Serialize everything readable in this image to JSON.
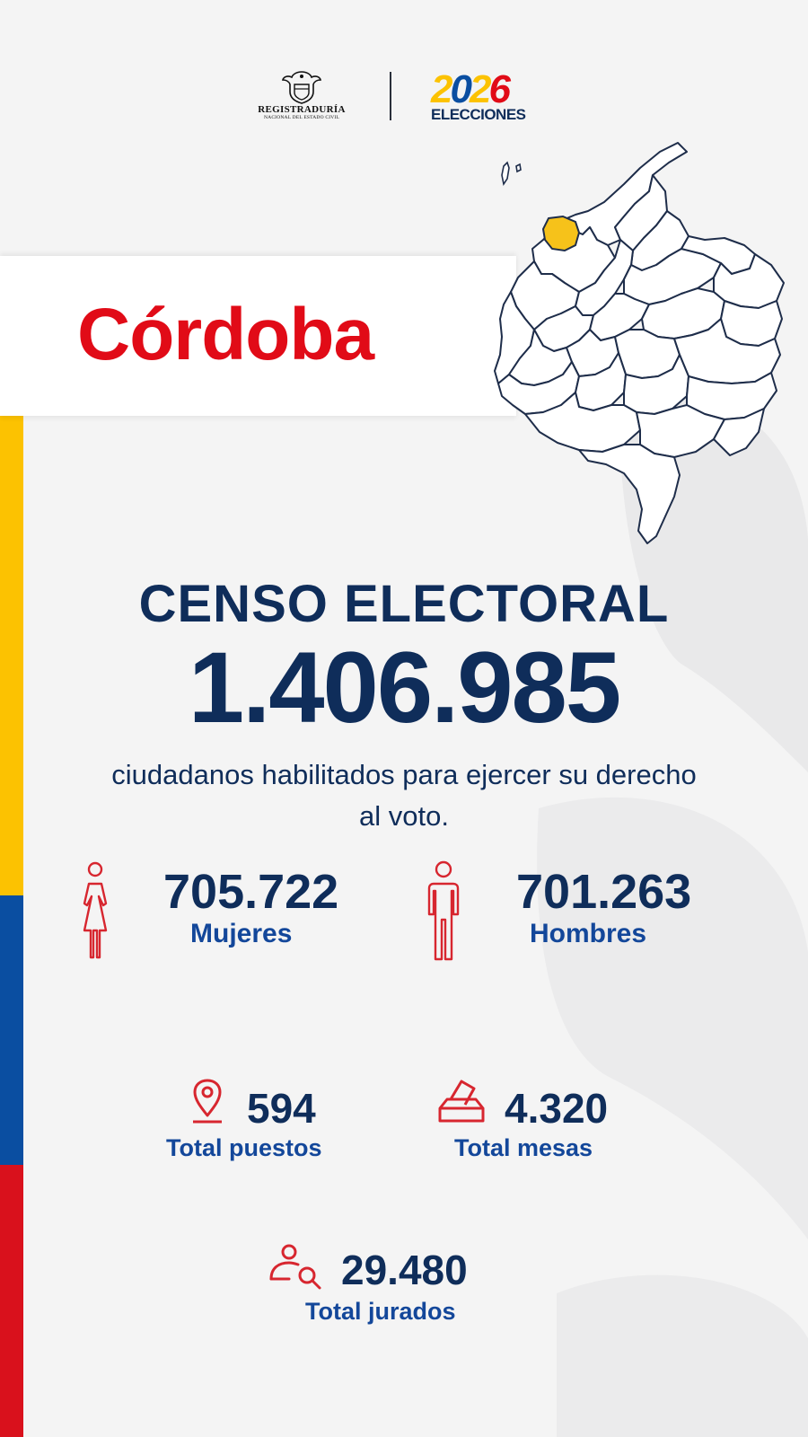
{
  "colors": {
    "brand_red": "#e10b17",
    "brand_navy": "#0f2d5a",
    "label_blue": "#13479a",
    "flag_yellow": "#fcc201",
    "flag_blue": "#0a4ea1",
    "flag_red": "#d9111c",
    "map_highlight": "#f6c21a"
  },
  "header": {
    "registraduria_logo": {
      "icon": "coat-of-arms-icon",
      "name": "REGISTRADURÍA",
      "subtitle": "NACIONAL DEL ESTADO CIVIL"
    },
    "elecciones_logo": {
      "year_digits": [
        "2",
        "0",
        "2",
        "6"
      ],
      "digit_colors": [
        "#fcc201",
        "#0a4ea1",
        "#fcc201",
        "#e10b17"
      ],
      "label": "ELECCIONES"
    }
  },
  "department": {
    "name": "Córdoba",
    "map_icon": "colombia-map-icon"
  },
  "census": {
    "title": "CENSO ELECTORAL",
    "total": "1.406.985",
    "description": "ciudadanos habilitados para ejercer su derecho al voto."
  },
  "gender": {
    "women": {
      "icon": "woman-icon",
      "value": "705.722",
      "label": "Mujeres"
    },
    "men": {
      "icon": "man-icon",
      "value": "701.263",
      "label": "Hombres"
    }
  },
  "totals": {
    "puestos": {
      "icon": "location-pin-icon",
      "value": "594",
      "label": "Total puestos"
    },
    "mesas": {
      "icon": "ballot-box-icon",
      "value": "4.320",
      "label": "Total mesas"
    },
    "jurados": {
      "icon": "person-search-icon",
      "value": "29.480",
      "label": "Total jurados"
    }
  }
}
